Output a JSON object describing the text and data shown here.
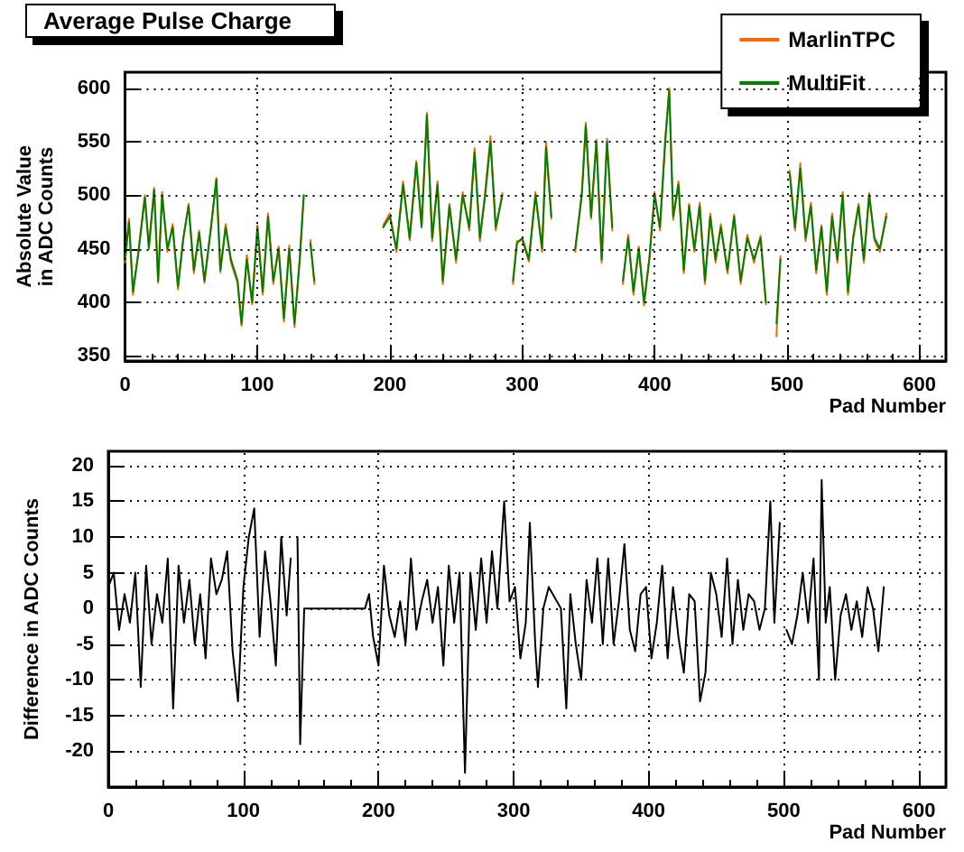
{
  "chart_data": [
    {
      "type": "line",
      "title": "Average Pulse Charge",
      "xlabel": "Pad Number",
      "ylabel": "Absolute Value\nin ADC Counts",
      "xlim": [
        0,
        620
      ],
      "xticks": [
        0,
        100,
        200,
        300,
        400,
        500,
        600
      ],
      "ylim": [
        345,
        615
      ],
      "yticks": [
        350,
        400,
        450,
        500,
        550,
        600
      ],
      "grid": true,
      "legend": "top right",
      "marker": "none",
      "line_style": "solid",
      "series": [
        {
          "name": "MarlinTPC",
          "color": "#ff6600",
          "x": [
            0,
            3,
            6,
            10,
            15,
            18,
            22,
            25,
            28,
            32,
            36,
            40,
            44,
            48,
            52,
            56,
            60,
            65,
            69,
            72,
            76,
            80,
            85,
            88,
            92,
            96,
            100,
            104,
            108,
            112,
            116,
            120,
            124,
            128,
            132,
            135,
            137,
            140,
            143,
            145,
            193,
            195,
            200,
            205,
            210,
            215,
            220,
            224,
            228,
            232,
            236,
            240,
            245,
            250,
            255,
            260,
            264,
            268,
            272,
            276,
            280,
            285,
            290,
            293,
            296,
            300,
            305,
            310,
            315,
            318,
            322,
            325,
            337,
            340,
            345,
            348,
            352,
            356,
            360,
            364,
            368,
            372,
            376,
            380,
            384,
            388,
            392,
            396,
            400,
            404,
            408,
            411,
            414,
            418,
            422,
            426,
            430,
            434,
            438,
            442,
            446,
            450,
            455,
            460,
            465,
            470,
            475,
            480,
            484,
            488,
            492,
            495,
            499,
            502,
            506,
            510,
            514,
            518,
            522,
            526,
            530,
            534,
            538,
            542,
            546,
            550,
            554,
            558,
            562,
            566,
            570,
            575
          ],
          "values": [
            437,
            478,
            407,
            447,
            500,
            452,
            507,
            418,
            503,
            447,
            473,
            412,
            458,
            492,
            427,
            467,
            418,
            472,
            516,
            428,
            473,
            437,
            418,
            378,
            444,
            398,
            472,
            407,
            483,
            417,
            452,
            382,
            453,
            377,
            442,
            500,
            null,
            458,
            417,
            null,
            null,
            472,
            483,
            447,
            513,
            458,
            532,
            472,
            577,
            457,
            513,
            417,
            492,
            437,
            503,
            467,
            544,
            457,
            503,
            555,
            467,
            502,
            null,
            417,
            457,
            458,
            438,
            503,
            447,
            550,
            478,
            null,
            null,
            447,
            503,
            568,
            478,
            552,
            437,
            553,
            467,
            null,
            417,
            463,
            407,
            452,
            397,
            442,
            503,
            467,
            553,
            600,
            477,
            513,
            427,
            492,
            447,
            493,
            417,
            483,
            437,
            473,
            427,
            482,
            417,
            463,
            437,
            462,
            398,
            null,
            368,
            443,
            null,
            523,
            467,
            530,
            457,
            493,
            427,
            472,
            407,
            483,
            437,
            503,
            407,
            462,
            492,
            437,
            502,
            458,
            447,
            483
          ]
        },
        {
          "name": "MultiFit",
          "color": "#008000",
          "x": [
            0,
            3,
            6,
            10,
            15,
            18,
            22,
            25,
            28,
            32,
            36,
            40,
            44,
            48,
            52,
            56,
            60,
            65,
            69,
            72,
            76,
            80,
            85,
            88,
            92,
            96,
            100,
            104,
            108,
            112,
            116,
            120,
            124,
            128,
            132,
            135,
            137,
            140,
            143,
            145,
            193,
            195,
            200,
            205,
            210,
            215,
            220,
            224,
            228,
            232,
            236,
            240,
            245,
            250,
            255,
            260,
            264,
            268,
            272,
            276,
            280,
            285,
            290,
            293,
            296,
            300,
            305,
            310,
            315,
            318,
            322,
            325,
            337,
            340,
            345,
            348,
            352,
            356,
            360,
            364,
            368,
            372,
            376,
            380,
            384,
            388,
            392,
            396,
            400,
            404,
            408,
            411,
            414,
            418,
            422,
            426,
            430,
            434,
            438,
            442,
            446,
            450,
            455,
            460,
            465,
            470,
            475,
            480,
            484,
            488,
            492,
            495,
            499,
            502,
            506,
            510,
            514,
            518,
            522,
            526,
            530,
            534,
            538,
            542,
            546,
            550,
            554,
            558,
            562,
            566,
            570,
            575
          ],
          "values": [
            440,
            475,
            410,
            445,
            498,
            450,
            505,
            420,
            500,
            450,
            470,
            415,
            460,
            490,
            430,
            465,
            420,
            470,
            515,
            430,
            470,
            440,
            420,
            380,
            440,
            400,
            470,
            410,
            480,
            420,
            450,
            385,
            450,
            380,
            440,
            500,
            null,
            455,
            420,
            null,
            null,
            470,
            480,
            450,
            510,
            460,
            530,
            470,
            575,
            460,
            510,
            420,
            490,
            440,
            500,
            470,
            540,
            460,
            500,
            550,
            470,
            500,
            null,
            420,
            455,
            460,
            440,
            500,
            450,
            545,
            480,
            null,
            null,
            450,
            500,
            565,
            480,
            550,
            440,
            550,
            470,
            null,
            420,
            460,
            410,
            450,
            400,
            440,
            500,
            470,
            550,
            598,
            480,
            510,
            430,
            490,
            450,
            490,
            420,
            480,
            440,
            470,
            430,
            480,
            420,
            460,
            440,
            460,
            400,
            null,
            380,
            440,
            null,
            520,
            470,
            525,
            460,
            490,
            430,
            470,
            410,
            480,
            440,
            500,
            410,
            460,
            490,
            440,
            500,
            460,
            450,
            480
          ]
        }
      ]
    },
    {
      "type": "line",
      "xlabel": "Pad Number",
      "ylabel": "Difference in ADC Counts",
      "xlim": [
        0,
        620
      ],
      "xticks": [
        0,
        100,
        200,
        300,
        400,
        500,
        600
      ],
      "ylim": [
        -25,
        22
      ],
      "yticks": [
        -20,
        -15,
        -10,
        -5,
        0,
        5,
        10,
        15,
        20
      ],
      "grid": true,
      "legend": false,
      "marker": "none",
      "line_style": "solid",
      "series": [
        {
          "color": "#000000",
          "x": [
            0,
            4,
            8,
            12,
            16,
            20,
            24,
            28,
            32,
            36,
            40,
            44,
            48,
            52,
            56,
            60,
            64,
            68,
            72,
            76,
            80,
            84,
            88,
            92,
            96,
            100,
            104,
            108,
            112,
            116,
            120,
            124,
            128,
            132,
            135,
            137,
            140,
            142,
            145,
            190,
            193,
            196,
            200,
            204,
            208,
            212,
            216,
            220,
            224,
            228,
            232,
            236,
            240,
            244,
            248,
            252,
            256,
            260,
            264,
            268,
            272,
            276,
            280,
            284,
            288,
            293,
            297,
            301,
            305,
            309,
            312,
            316,
            318,
            322,
            326,
            335,
            339,
            342,
            346,
            350,
            354,
            358,
            362,
            366,
            370,
            374,
            378,
            382,
            386,
            390,
            394,
            398,
            402,
            406,
            410,
            414,
            418,
            422,
            426,
            430,
            434,
            438,
            442,
            446,
            450,
            454,
            458,
            462,
            466,
            470,
            474,
            478,
            482,
            486,
            490,
            493,
            495,
            497,
            499,
            502,
            506,
            510,
            514,
            518,
            522,
            526,
            528,
            531,
            534,
            538,
            542,
            546,
            550,
            554,
            558,
            562,
            566,
            570,
            574
          ],
          "values": [
            3,
            5,
            -3,
            2,
            -2,
            5,
            -11,
            6,
            -5,
            2,
            -2,
            7,
            -14,
            6,
            -2,
            4,
            -5,
            2,
            -7,
            7,
            2,
            4,
            8,
            -6,
            -13,
            3,
            10,
            14,
            -4,
            8,
            1,
            -8,
            10,
            -1,
            7,
            null,
            10,
            -19,
            0,
            0,
            2,
            -4,
            -8,
            6,
            -1,
            -4,
            1,
            -5,
            7,
            -3,
            1,
            4,
            -2,
            3,
            -8,
            6,
            -2,
            5,
            -23,
            5,
            -3,
            7,
            -2,
            8,
            0,
            15,
            1,
            3,
            -7,
            -2,
            12,
            -5,
            -11,
            0,
            3,
            0,
            -14,
            2,
            -5,
            -10,
            4,
            -2,
            7,
            -5,
            7,
            -5,
            1,
            9,
            -3,
            -6,
            2,
            3,
            -7,
            -2,
            6,
            -7,
            3,
            -4,
            -9,
            2,
            1,
            -13,
            -9,
            5,
            2,
            -4,
            7,
            -5,
            4,
            -3,
            2,
            1,
            -3,
            0,
            15,
            -2,
            5,
            12,
            null,
            -3,
            -5,
            -1,
            5,
            -2,
            7,
            -10,
            18,
            -2,
            3,
            -10,
            -1,
            2,
            -3,
            1,
            -4,
            3,
            0,
            -6,
            3
          ]
        }
      ]
    }
  ]
}
